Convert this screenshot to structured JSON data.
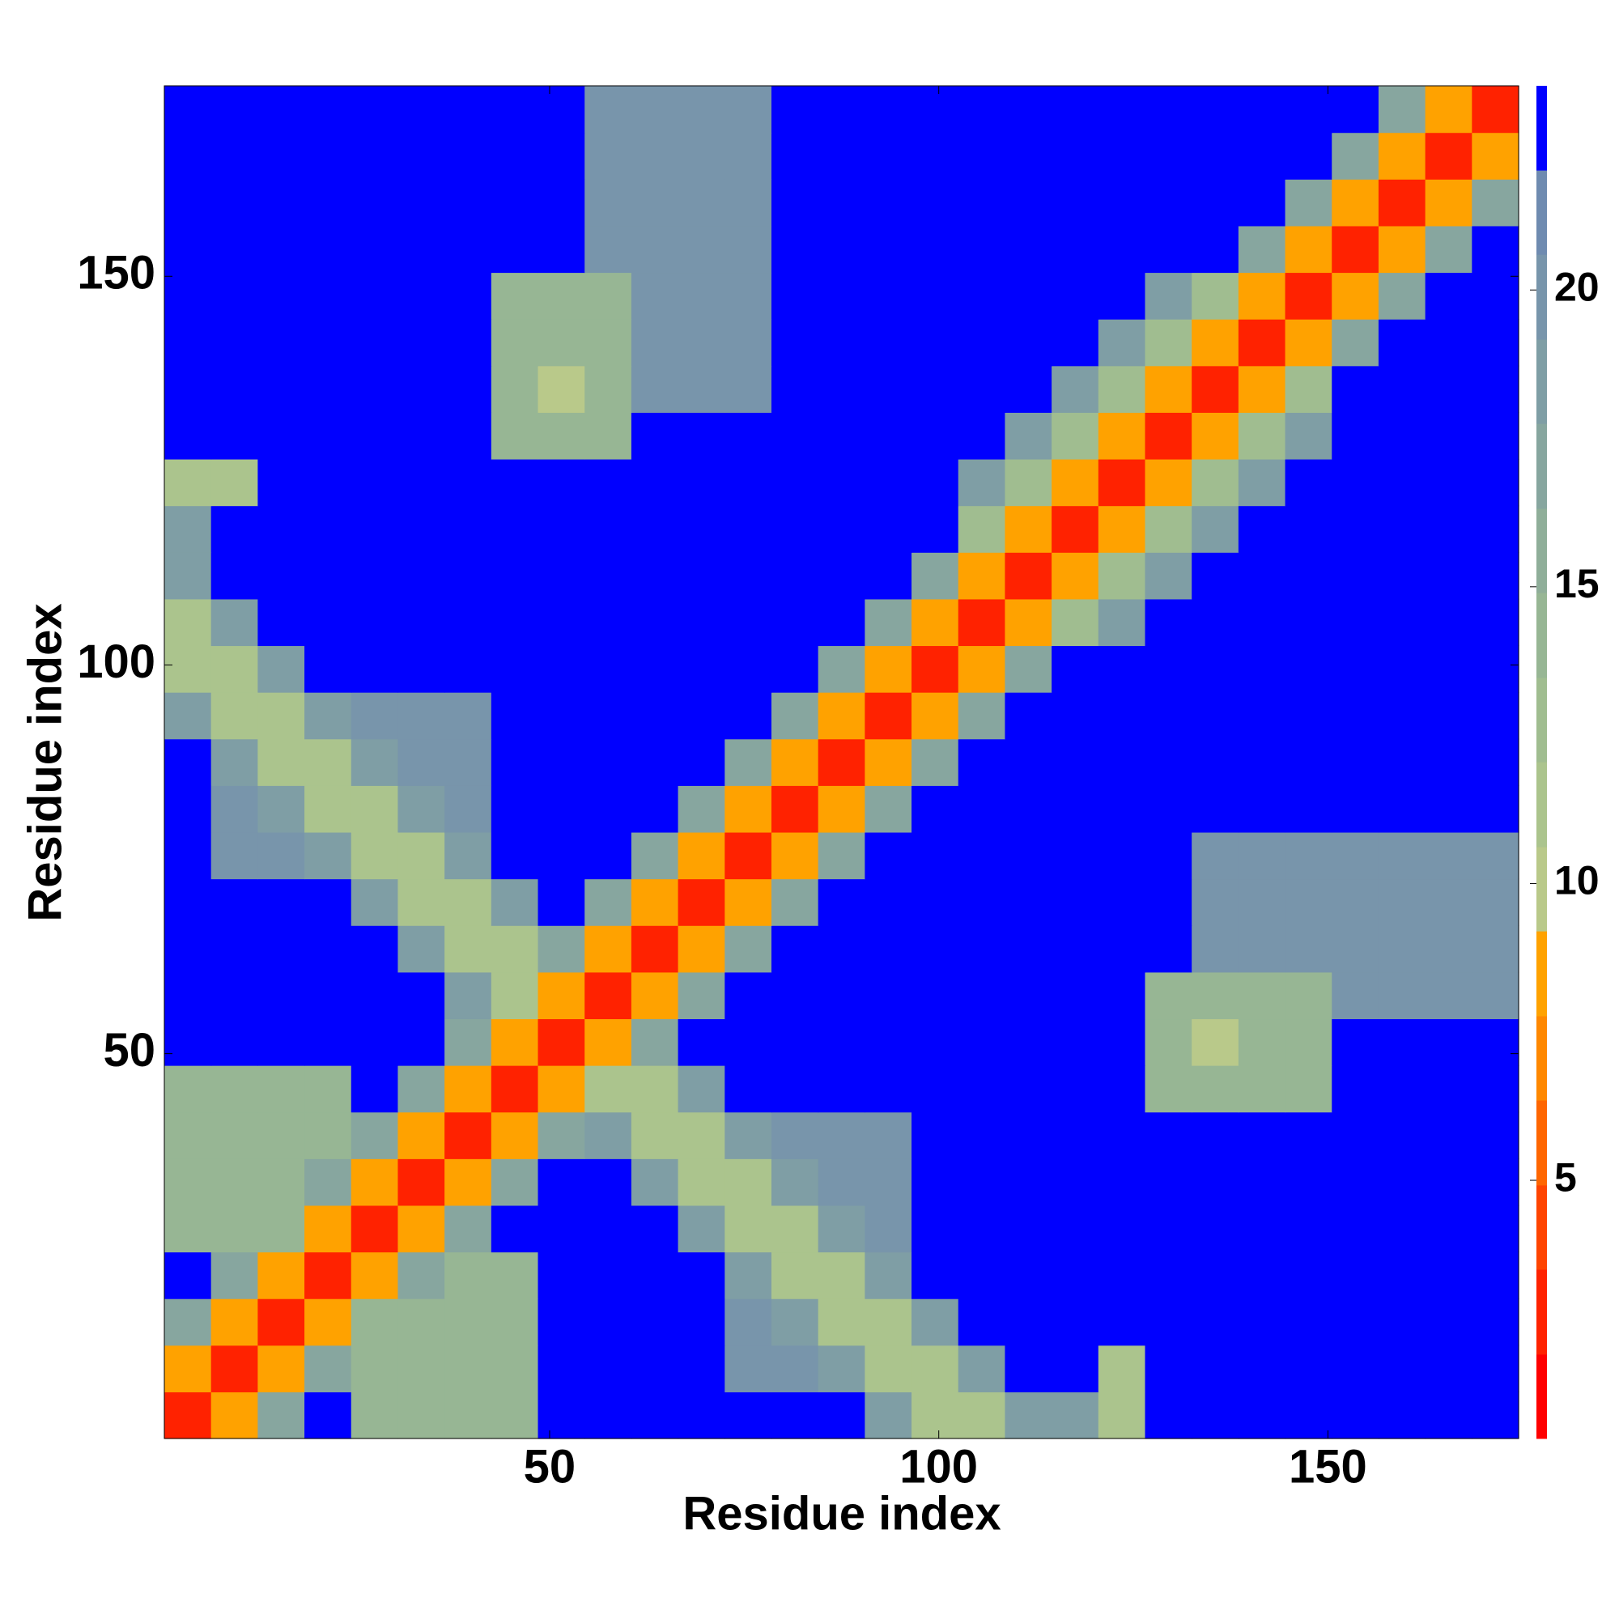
{
  "chart_data": {
    "type": "heatmap",
    "x_label": "Residue index",
    "y_label": "Residue index",
    "x": [
      3.5,
      9.5,
      15.5,
      21.5,
      27.5,
      33.5,
      39.5,
      45.5,
      51.5,
      57.5,
      63.5,
      69.5,
      75.5,
      81.5,
      87.5,
      93.5,
      99.5,
      105.5,
      111.5,
      117.5,
      123.5,
      129.5,
      135.5,
      141.5,
      147.5,
      153.5,
      159.5,
      165.5,
      171.5
    ],
    "y": [
      3.5,
      9.5,
      15.5,
      21.5,
      27.5,
      33.5,
      39.5,
      45.5,
      51.5,
      57.5,
      63.5,
      69.5,
      75.5,
      81.5,
      87.5,
      93.5,
      99.5,
      105.5,
      111.5,
      117.5,
      123.5,
      129.5,
      135.5,
      141.5,
      147.5,
      153.5,
      159.5,
      165.5,
      171.5
    ],
    "xlim": [
      0.5,
      174.5
    ],
    "ylim": [
      0.5,
      174.5
    ],
    "xticks": [
      50,
      100,
      150
    ],
    "yticks": [
      50,
      100,
      150
    ],
    "z": [
      [
        3,
        9,
        17,
        23,
        14,
        14,
        14,
        14,
        23,
        23,
        23,
        23,
        23,
        23,
        23,
        18,
        11,
        11,
        18,
        19,
        12,
        23,
        23,
        23,
        23,
        23,
        23,
        23,
        23
      ],
      [
        9,
        3,
        9,
        17,
        14,
        14,
        14,
        14,
        23,
        23,
        23,
        23,
        20,
        20,
        18,
        11,
        11,
        18,
        23,
        23,
        12,
        23,
        23,
        23,
        23,
        23,
        23,
        23,
        23
      ],
      [
        17,
        9,
        3,
        9,
        14,
        14,
        14,
        14,
        23,
        23,
        23,
        23,
        20,
        18,
        11,
        11,
        18,
        23,
        23,
        23,
        23,
        23,
        23,
        23,
        23,
        23,
        23,
        23,
        23
      ],
      [
        23,
        17,
        9,
        3,
        9,
        17,
        14,
        14,
        23,
        23,
        23,
        23,
        18,
        11,
        11,
        18,
        23,
        23,
        23,
        23,
        23,
        23,
        23,
        23,
        23,
        23,
        23,
        23,
        23
      ],
      [
        14,
        14,
        14,
        9,
        3,
        9,
        17,
        23,
        23,
        23,
        23,
        18,
        11,
        11,
        18,
        20,
        23,
        23,
        23,
        23,
        23,
        23,
        23,
        23,
        23,
        23,
        23,
        23,
        23
      ],
      [
        14,
        14,
        14,
        17,
        9,
        3,
        9,
        17,
        23,
        23,
        18,
        11,
        11,
        18,
        20,
        20,
        23,
        23,
        23,
        23,
        23,
        23,
        23,
        23,
        23,
        23,
        23,
        23,
        23
      ],
      [
        14,
        14,
        14,
        14,
        17,
        9,
        3,
        9,
        17,
        18,
        11,
        11,
        18,
        20,
        20,
        20,
        23,
        23,
        23,
        23,
        23,
        23,
        23,
        23,
        23,
        23,
        23,
        23,
        23
      ],
      [
        14,
        14,
        14,
        14,
        23,
        17,
        9,
        3,
        9,
        11,
        11,
        18,
        23,
        23,
        23,
        23,
        23,
        23,
        23,
        23,
        23,
        14,
        14,
        14,
        14,
        23,
        23,
        23,
        23
      ],
      [
        23,
        23,
        23,
        23,
        23,
        23,
        17,
        9,
        3,
        9,
        17,
        23,
        23,
        23,
        23,
        23,
        23,
        23,
        23,
        23,
        23,
        14,
        10,
        14,
        14,
        23,
        23,
        23,
        23
      ],
      [
        23,
        23,
        23,
        23,
        23,
        23,
        18,
        11,
        9,
        3,
        9,
        17,
        23,
        23,
        23,
        23,
        23,
        23,
        23,
        23,
        23,
        14,
        14,
        14,
        14,
        20,
        20,
        20,
        20
      ],
      [
        23,
        23,
        23,
        23,
        23,
        18,
        11,
        11,
        17,
        9,
        3,
        9,
        17,
        23,
        23,
        23,
        23,
        23,
        23,
        23,
        23,
        23,
        20,
        20,
        20,
        20,
        20,
        20,
        20
      ],
      [
        23,
        23,
        23,
        23,
        18,
        11,
        11,
        18,
        23,
        17,
        9,
        3,
        9,
        17,
        23,
        23,
        23,
        23,
        23,
        23,
        23,
        23,
        20,
        20,
        20,
        20,
        20,
        20,
        20
      ],
      [
        23,
        20,
        20,
        18,
        11,
        11,
        18,
        23,
        23,
        23,
        17,
        9,
        3,
        9,
        17,
        23,
        23,
        23,
        23,
        23,
        23,
        23,
        20,
        20,
        20,
        20,
        20,
        20,
        20
      ],
      [
        23,
        20,
        18,
        11,
        11,
        18,
        20,
        23,
        23,
        23,
        23,
        17,
        9,
        3,
        9,
        17,
        23,
        23,
        23,
        23,
        23,
        23,
        23,
        23,
        23,
        23,
        23,
        23,
        23
      ],
      [
        23,
        18,
        11,
        11,
        18,
        20,
        20,
        23,
        23,
        23,
        23,
        23,
        17,
        9,
        3,
        9,
        17,
        23,
        23,
        23,
        23,
        23,
        23,
        23,
        23,
        23,
        23,
        23,
        23
      ],
      [
        18,
        11,
        11,
        18,
        20,
        20,
        20,
        23,
        23,
        23,
        23,
        23,
        23,
        17,
        9,
        3,
        9,
        17,
        23,
        23,
        23,
        23,
        23,
        23,
        23,
        23,
        23,
        23,
        23
      ],
      [
        11,
        11,
        18,
        23,
        23,
        23,
        23,
        23,
        23,
        23,
        23,
        23,
        23,
        23,
        17,
        9,
        3,
        9,
        17,
        23,
        23,
        23,
        23,
        23,
        23,
        23,
        23,
        23,
        23
      ],
      [
        11,
        18,
        23,
        23,
        23,
        23,
        23,
        23,
        23,
        23,
        23,
        23,
        23,
        23,
        23,
        17,
        9,
        3,
        9,
        13,
        19,
        23,
        23,
        23,
        23,
        23,
        23,
        23,
        23
      ],
      [
        18,
        23,
        23,
        23,
        23,
        23,
        23,
        23,
        23,
        23,
        23,
        23,
        23,
        23,
        23,
        23,
        17,
        9,
        3,
        9,
        13,
        19,
        23,
        23,
        23,
        23,
        23,
        23,
        23
      ],
      [
        19,
        23,
        23,
        23,
        23,
        23,
        23,
        23,
        23,
        23,
        23,
        23,
        23,
        23,
        23,
        23,
        23,
        13,
        9,
        3,
        9,
        13,
        19,
        23,
        23,
        23,
        23,
        23,
        23
      ],
      [
        12,
        12,
        23,
        23,
        23,
        23,
        23,
        23,
        23,
        23,
        23,
        23,
        23,
        23,
        23,
        23,
        23,
        19,
        13,
        9,
        3,
        9,
        13,
        19,
        23,
        23,
        23,
        23,
        23
      ],
      [
        23,
        23,
        23,
        23,
        23,
        23,
        23,
        14,
        14,
        14,
        23,
        23,
        23,
        23,
        23,
        23,
        23,
        23,
        19,
        13,
        9,
        3,
        9,
        13,
        19,
        23,
        23,
        23,
        23
      ],
      [
        23,
        23,
        23,
        23,
        23,
        23,
        23,
        14,
        10,
        14,
        20,
        20,
        20,
        23,
        23,
        23,
        23,
        23,
        23,
        19,
        13,
        9,
        3,
        9,
        13,
        23,
        23,
        23,
        23
      ],
      [
        23,
        23,
        23,
        23,
        23,
        23,
        23,
        14,
        14,
        14,
        20,
        20,
        20,
        23,
        23,
        23,
        23,
        23,
        23,
        23,
        19,
        13,
        9,
        3,
        9,
        17,
        23,
        23,
        23
      ],
      [
        23,
        23,
        23,
        23,
        23,
        23,
        23,
        14,
        14,
        14,
        20,
        20,
        20,
        23,
        23,
        23,
        23,
        23,
        23,
        23,
        23,
        19,
        13,
        9,
        3,
        9,
        17,
        23,
        23
      ],
      [
        23,
        23,
        23,
        23,
        23,
        23,
        23,
        23,
        23,
        20,
        20,
        20,
        20,
        23,
        23,
        23,
        23,
        23,
        23,
        23,
        23,
        23,
        23,
        17,
        9,
        3,
        9,
        17,
        23
      ],
      [
        23,
        23,
        23,
        23,
        23,
        23,
        23,
        23,
        23,
        20,
        20,
        20,
        20,
        23,
        23,
        23,
        23,
        23,
        23,
        23,
        23,
        23,
        23,
        23,
        17,
        9,
        3,
        9,
        17
      ],
      [
        23,
        23,
        23,
        23,
        23,
        23,
        23,
        23,
        23,
        20,
        20,
        20,
        20,
        23,
        23,
        23,
        23,
        23,
        23,
        23,
        23,
        23,
        23,
        23,
        23,
        17,
        9,
        3,
        9
      ],
      [
        23,
        23,
        23,
        23,
        23,
        23,
        23,
        23,
        23,
        20,
        20,
        20,
        20,
        23,
        23,
        23,
        23,
        23,
        23,
        23,
        23,
        23,
        23,
        23,
        23,
        23,
        17,
        9,
        3
      ]
    ],
    "colorbar": {
      "levels": [
        0.65,
        2.07,
        3.5,
        4.92,
        6.35,
        7.77,
        9.2,
        10.62,
        12.05,
        13.47,
        14.9,
        16.32,
        17.75,
        19.17,
        20.6,
        22.02,
        23.44
      ],
      "colors": [
        "#ff0000",
        "#ff2200",
        "#ff4400",
        "#ff6600",
        "#ff8800",
        "#ffa200",
        "#b9c98a",
        "#abc48d",
        "#a0bd90",
        "#97b694",
        "#8fae99",
        "#87a69f",
        "#7f9ea5",
        "#7895ab",
        "#6f8bb0",
        "#0000ff"
      ],
      "ticks": [
        5,
        10,
        15,
        20
      ]
    }
  }
}
